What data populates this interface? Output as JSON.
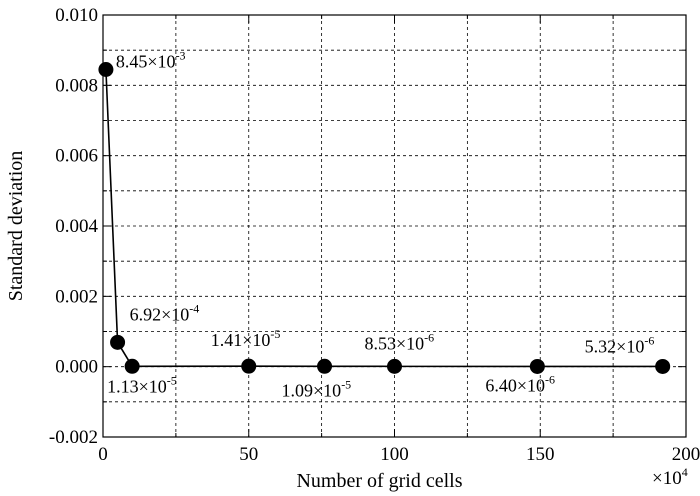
{
  "chart_data": {
    "type": "line",
    "xlabel": "Number of grid cells",
    "x_multiplier": "×10",
    "x_multiplier_exp": "4",
    "ylabel": "Standard deviation",
    "xlim": [
      0,
      200
    ],
    "ylim": [
      -0.002,
      0.01
    ],
    "xticks": [
      0,
      50,
      100,
      150,
      200
    ],
    "yticks": [
      -0.002,
      0.0,
      0.002,
      0.004,
      0.006,
      0.008,
      0.01
    ],
    "xtick_labels": [
      "0",
      "50",
      "100",
      "150",
      "200"
    ],
    "ytick_labels": [
      "-0.002",
      "0.000",
      "0.002",
      "0.004",
      "0.006",
      "0.008",
      "0.010"
    ],
    "grid": true,
    "series": [
      {
        "x": [
          1,
          5,
          10,
          50,
          76,
          100,
          149,
          192
        ],
        "y": [
          0.00845,
          0.000692,
          1.13e-05,
          1.41e-05,
          1.09e-05,
          8.53e-06,
          6.4e-06,
          5.32e-06
        ]
      }
    ],
    "point_labels": [
      {
        "mantissa": "8.45×10",
        "exp": "-3"
      },
      {
        "mantissa": "6.92×10",
        "exp": "-4"
      },
      {
        "mantissa": "1.13×10",
        "exp": "-5"
      },
      {
        "mantissa": "1.41×10",
        "exp": "-5"
      },
      {
        "mantissa": "1.09×10",
        "exp": "-5"
      },
      {
        "mantissa": "8.53×10",
        "exp": "-6"
      },
      {
        "mantissa": "6.40×10",
        "exp": "-6"
      },
      {
        "mantissa": "5.32×10",
        "exp": "-6"
      }
    ],
    "marker_color": "#000000",
    "line_color": "#000000"
  }
}
